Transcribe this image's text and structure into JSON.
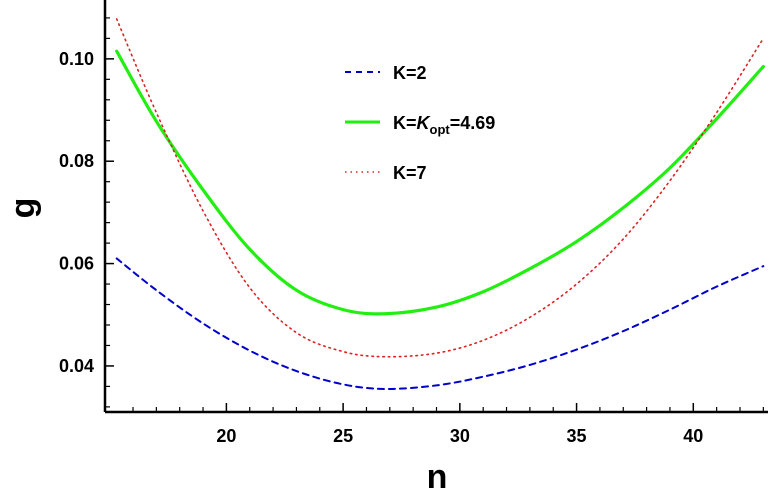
{
  "chart_data": {
    "type": "line",
    "xlabel": "n",
    "ylabel": "g",
    "xlim": [
      14.8,
      43.2
    ],
    "ylim": [
      0.031,
      0.1115
    ],
    "xticks_major": [
      20,
      25,
      30,
      35,
      40
    ],
    "xticks_minor": [
      16,
      17,
      18,
      19,
      21,
      22,
      23,
      24,
      26,
      27,
      28,
      29,
      31,
      32,
      33,
      34,
      36,
      37,
      38,
      39,
      41,
      42,
      43
    ],
    "yticks_major": [
      0.04,
      0.06,
      0.08,
      0.1
    ],
    "ytick_labels": [
      "0.04",
      "0.06",
      "0.08",
      "0.10"
    ],
    "yticks_minor": [
      0.032,
      0.036,
      0.044,
      0.048,
      0.052,
      0.056,
      0.064,
      0.068,
      0.072,
      0.076,
      0.084,
      0.088,
      0.092,
      0.096,
      0.104,
      0.108
    ],
    "legend": {
      "placement": "top-center",
      "entries": [
        {
          "label": "K=2"
        },
        {
          "label_parts": [
            "K=",
            "K",
            "opt",
            "=4.69"
          ]
        },
        {
          "label": "K=7"
        }
      ]
    },
    "series": [
      {
        "key": "k2",
        "color": "#0000cc",
        "style": "dashed",
        "x": [
          15.3,
          17,
          19,
          21,
          23,
          25,
          26.8,
          29,
          31,
          33,
          35,
          37,
          39,
          41,
          43
        ],
        "y": [
          0.061,
          0.0548,
          0.0483,
          0.043,
          0.039,
          0.0364,
          0.0355,
          0.0362,
          0.0379,
          0.0402,
          0.0432,
          0.0468,
          0.051,
          0.0555,
          0.0595
        ]
      },
      {
        "key": "kopt",
        "color": "#22ee11",
        "style": "solid",
        "x": [
          15.3,
          17,
          19,
          21,
          23,
          25,
          26.8,
          29,
          31,
          33,
          35,
          37,
          39,
          41,
          43
        ],
        "y": [
          0.1015,
          0.0878,
          0.0744,
          0.0628,
          0.0548,
          0.051,
          0.0502,
          0.0515,
          0.0545,
          0.059,
          0.0643,
          0.0709,
          0.0787,
          0.0883,
          0.0985
        ]
      },
      {
        "key": "k7",
        "color": "#dd2222",
        "style": "dotted",
        "x": [
          15.3,
          17,
          19,
          21,
          23,
          25,
          26.8,
          29,
          31,
          33,
          35,
          37,
          39,
          41,
          43
        ],
        "y": [
          0.1078,
          0.0895,
          0.0703,
          0.0553,
          0.0465,
          0.0428,
          0.0418,
          0.0425,
          0.045,
          0.0495,
          0.056,
          0.0648,
          0.0762,
          0.0895,
          0.104
        ]
      }
    ]
  }
}
